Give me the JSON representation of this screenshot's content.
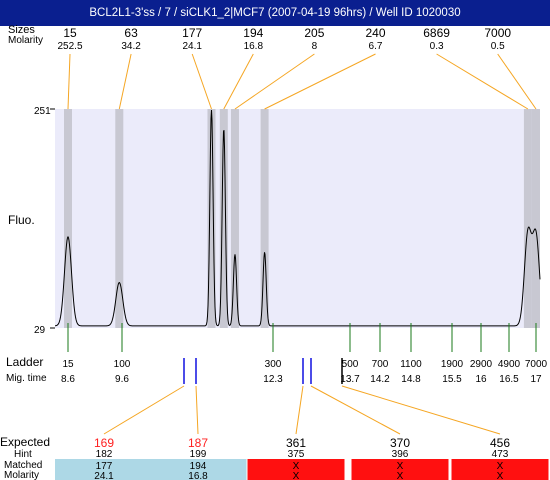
{
  "header": {
    "title": "BCL2L1-3'ss / 7 / siCLK1_2|MCF7 (2007-04-19 96hrs) / Well ID 1020030"
  },
  "labels": {
    "sizes": "Sizes",
    "molarity": "Molarity",
    "fluo": "Fluo.",
    "ladder": "Ladder",
    "migtime": "Mig. time",
    "expected": "Expected",
    "hint": "Hint",
    "matched": "Matched",
    "molarity_bottom": "Molarity"
  },
  "colors": {
    "title_bg": "#0a1f8f",
    "plot_bg": "#ebebfa",
    "peak_band": "#c8c8d2",
    "orange": "#f5a623",
    "green": "#1a7a1a",
    "blue": "#1010e0",
    "red_expected": "#ff2020",
    "matched_bg": "#add8e6",
    "unmatched_bg": "#ff1010"
  },
  "chart_data": {
    "type": "line",
    "ylabel": "Fluo.",
    "y_ticks": [
      "251",
      "29"
    ],
    "ylim": [
      29,
      251
    ],
    "peaks": [
      {
        "size": "15",
        "molarity": "252.5",
        "time": 8.6,
        "height": 0.41
      },
      {
        "size": "63",
        "molarity": "34.2",
        "time": 9.55,
        "height": 0.2
      },
      {
        "size": "177",
        "molarity": "24.1",
        "time": 11.2,
        "height": 1.0
      },
      {
        "size": "194",
        "molarity": "16.8",
        "time": 11.42,
        "height": 0.91
      },
      {
        "size": "205",
        "molarity": "8",
        "time": 11.62,
        "height": 0.33
      },
      {
        "size": "240",
        "molarity": "6.7",
        "time": 12.15,
        "height": 0.34
      },
      {
        "size": "6869",
        "molarity": "0.3",
        "time": 16.85,
        "height": 0.42
      },
      {
        "size": "7000",
        "molarity": "0.5",
        "time": 17.0,
        "height": 0.41
      }
    ],
    "ladder": [
      {
        "size": "15",
        "time": "8.6"
      },
      {
        "size": "100",
        "time": "9.6"
      },
      {
        "size": "300",
        "time": "12.3"
      },
      {
        "size": "500",
        "time": "13.7"
      },
      {
        "size": "700",
        "time": "14.2"
      },
      {
        "size": "1100",
        "time": "14.8"
      },
      {
        "size": "1900",
        "time": "15.5"
      },
      {
        "size": "2900",
        "time": "16"
      },
      {
        "size": "4900",
        "time": "16.5"
      },
      {
        "size": "7000",
        "time": "17"
      }
    ],
    "expected": [
      {
        "expected": "169",
        "hint": "182",
        "matched": "177",
        "molarity": "24.1",
        "is_matched": true,
        "mark_color": "blue"
      },
      {
        "expected": "187",
        "hint": "199",
        "matched": "194",
        "molarity": "16.8",
        "is_matched": true,
        "mark_color": "blue"
      },
      {
        "expected": "361",
        "hint": "375",
        "matched": "X",
        "molarity": "X",
        "is_matched": false,
        "mark_color": "blue"
      },
      {
        "expected": "370",
        "hint": "396",
        "matched": "X",
        "molarity": "X",
        "is_matched": false,
        "mark_color": "blue"
      },
      {
        "expected": "456",
        "hint": "473",
        "matched": "X",
        "molarity": "X",
        "is_matched": false,
        "mark_color": "black"
      }
    ]
  }
}
